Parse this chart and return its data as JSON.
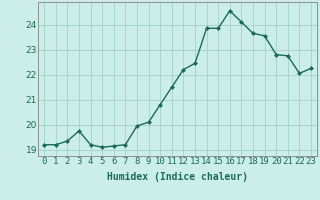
{
  "x": [
    0,
    1,
    2,
    3,
    4,
    5,
    6,
    7,
    8,
    9,
    10,
    11,
    12,
    13,
    14,
    15,
    16,
    17,
    18,
    19,
    20,
    21,
    22,
    23
  ],
  "y": [
    19.2,
    19.2,
    19.35,
    19.75,
    19.2,
    19.1,
    19.15,
    19.2,
    19.95,
    20.1,
    20.8,
    21.5,
    22.2,
    22.45,
    23.85,
    23.85,
    24.55,
    24.1,
    23.65,
    23.55,
    22.8,
    22.75,
    22.05,
    22.25
  ],
  "line_color": "#1a6b5a",
  "marker": "D",
  "marker_size": 2.0,
  "linewidth": 1.0,
  "bg_color": "#cceee8",
  "grid_color": "#aad4ce",
  "xlabel": "Humidex (Indice chaleur)",
  "ylim": [
    18.75,
    24.9
  ],
  "xlim": [
    -0.5,
    23.5
  ],
  "yticks": [
    19,
    20,
    21,
    22,
    23,
    24
  ],
  "xtick_labels": [
    "0",
    "1",
    "2",
    "3",
    "4",
    "5",
    "6",
    "7",
    "8",
    "9",
    "10",
    "11",
    "12",
    "13",
    "14",
    "15",
    "16",
    "17",
    "18",
    "19",
    "20",
    "21",
    "22",
    "23"
  ],
  "label_fontsize": 7,
  "tick_fontsize": 6.5
}
